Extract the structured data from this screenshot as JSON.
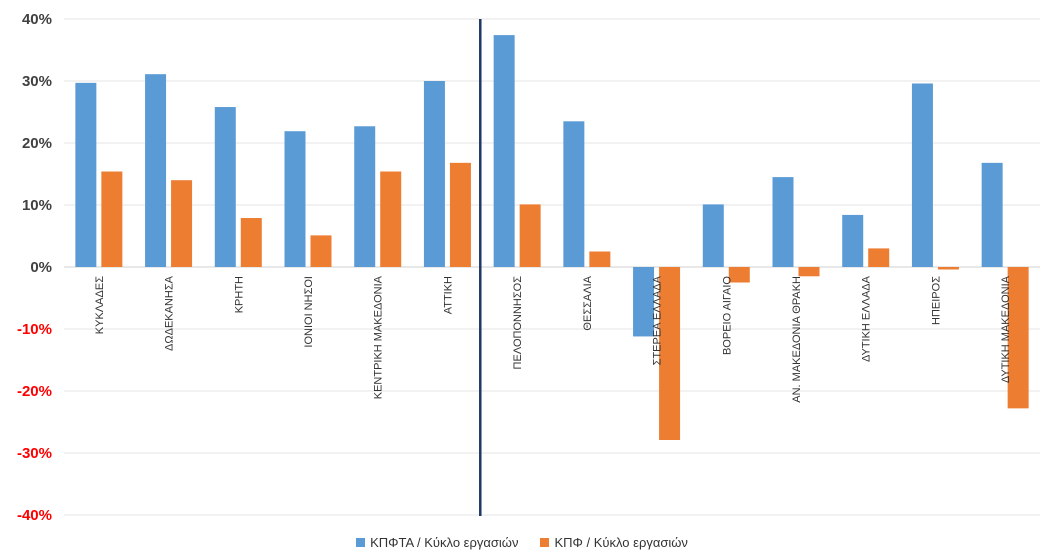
{
  "chart_data": {
    "type": "bar",
    "categories": [
      "ΚΥΚΛΑΔΕΣ",
      "ΔΩΔΕΚΑΝΗΣΑ",
      "ΚΡΗΤΗ",
      "ΙΟΝΙΟΙ ΝΗΣΟΙ",
      "ΚΕΝΤΡΙΚΗ ΜΑΚΕΔΟΝΙΑ",
      "ΑΤΤΙΚΗ",
      "ΠΕΛΟΠΟΝΝΗΣΟΣ",
      "ΘΕΣΣΑΛΙΑ",
      "ΣΤΕΡΕΑ ΕΛΛΑΔΑ",
      "ΒΟΡΕΙΟ ΑΙΓΑΙΟ",
      "ΑΝ. ΜΑΚΕΔΟΝΙΑ ΘΡΑΚΗ",
      "ΔΥΤΙΚΗ ΕΛΛΑΔΑ",
      "ΗΠΕΙΡΟΣ",
      "ΔΥΤΙΚΗ ΜΑΚΕΔΟΝΙΑ"
    ],
    "series": [
      {
        "name": "ΚΠΦΤΑ / Κύκλο εργασιών",
        "color": "#5B9BD5",
        "values": [
          29.7,
          31.1,
          25.8,
          21.9,
          22.7,
          30.0,
          37.4,
          23.5,
          -11.2,
          10.1,
          14.5,
          8.4,
          29.6,
          16.8
        ]
      },
      {
        "name": "ΚΠΦ / Κύκλο εργασιών",
        "color": "#ED7D31",
        "values": [
          15.4,
          14.0,
          7.9,
          5.1,
          15.4,
          16.8,
          10.1,
          2.5,
          -27.9,
          -2.5,
          -1.5,
          3.0,
          -0.4,
          -22.8
        ]
      }
    ],
    "yticks": [
      "40%",
      "30%",
      "20%",
      "10%",
      "0%",
      "-10%",
      "-20%",
      "-30%",
      "-40%"
    ],
    "ytick_values": [
      40,
      30,
      20,
      10,
      0,
      -10,
      -20,
      -30,
      -40
    ],
    "ylim": [
      -40,
      40
    ],
    "positive_tick_color": "#404040",
    "negative_tick_color": "#FF0000",
    "divider_after_category": "ΑΤΤΙΚΗ",
    "divider_color": "#1F3864",
    "grid": true,
    "legend_position": "bottom"
  }
}
